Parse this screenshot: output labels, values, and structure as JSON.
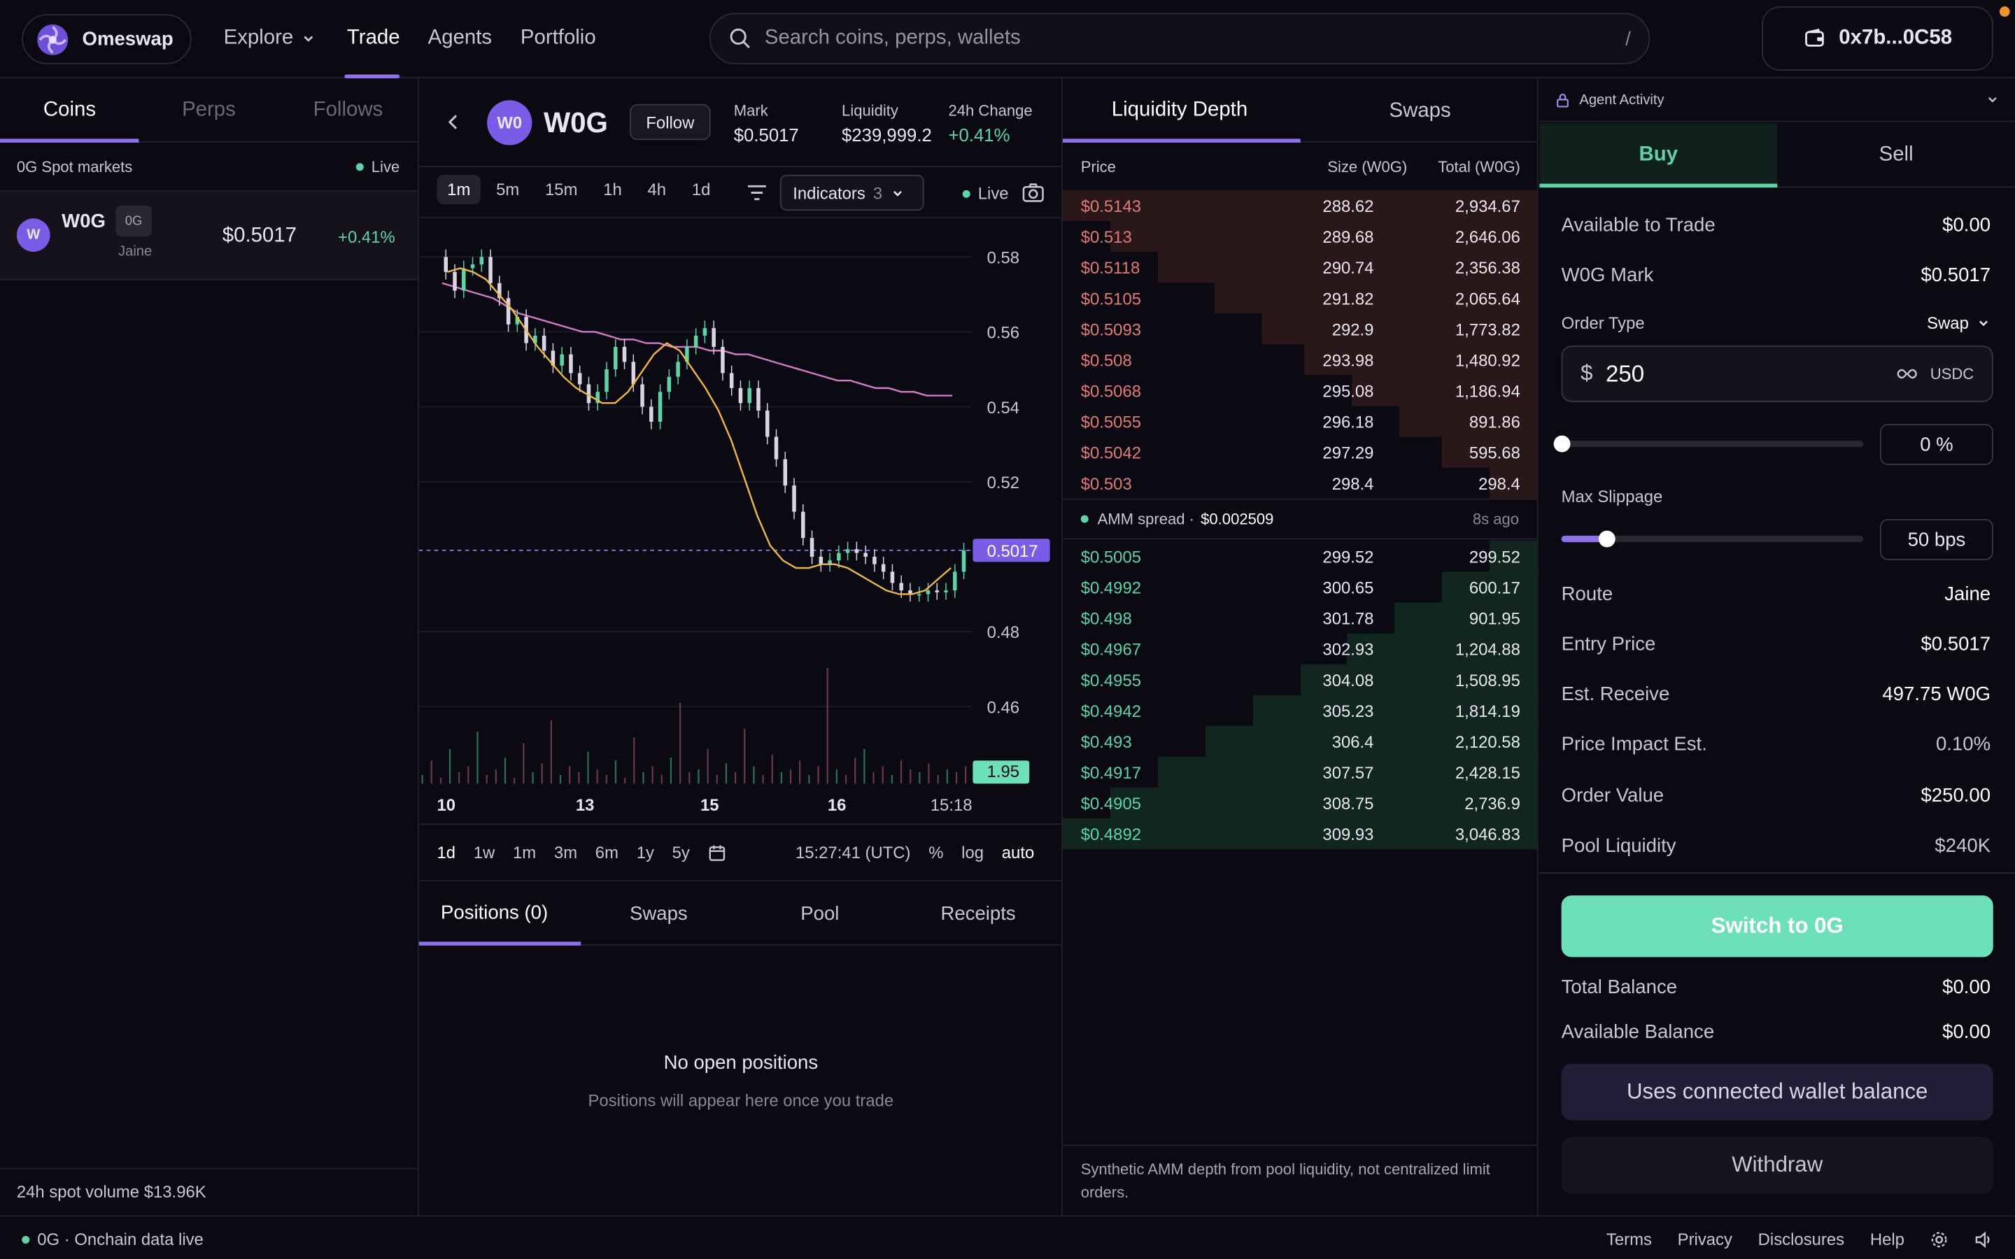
{
  "brand": {
    "name": "Omeswap"
  },
  "nav": {
    "explore": "Explore",
    "trade": "Trade",
    "agents": "Agents",
    "portfolio": "Portfolio"
  },
  "search": {
    "placeholder": "Search coins, perps, wallets",
    "shortcut": "/"
  },
  "wallet": {
    "address": "0x7b...0C58"
  },
  "left": {
    "tabs": [
      "Coins",
      "Perps",
      "Follows"
    ],
    "section_label": "0G Spot markets",
    "live": "Live",
    "coin": {
      "avatar": "W",
      "symbol": "W0G",
      "chain": "0G",
      "source": "Jaine",
      "price": "$0.5017",
      "change": "+0.41%"
    },
    "footer": "24h spot volume $13.96K"
  },
  "ticker": {
    "avatar": "W0",
    "symbol": "W0G",
    "follow": "Follow",
    "mark_label": "Mark",
    "mark": "$0.5017",
    "liq_label": "Liquidity",
    "liq": "$239,999.2",
    "chg_label": "24h Change",
    "chg": "+0.41%"
  },
  "chart_toolbar": {
    "timeframes": [
      "1m",
      "5m",
      "15m",
      "1h",
      "4h",
      "1d"
    ],
    "indicators_label": "Indicators",
    "indicators_count": "3",
    "live": "Live"
  },
  "chart_data": {
    "type": "line",
    "y_ticks": [
      "0.58",
      "0.56",
      "0.54",
      "0.52",
      "0.48",
      "0.46"
    ],
    "x_ticks": [
      "10",
      "13",
      "15",
      "16",
      "15:18"
    ],
    "ylim": [
      0.46,
      0.58
    ],
    "price_label": "0.5017",
    "volume_label": "1.95",
    "price": [
      0.58,
      0.576,
      0.571,
      0.577,
      0.578,
      0.58,
      0.573,
      0.569,
      0.562,
      0.564,
      0.557,
      0.559,
      0.555,
      0.551,
      0.554,
      0.549,
      0.546,
      0.541,
      0.544,
      0.55,
      0.556,
      0.552,
      0.546,
      0.54,
      0.536,
      0.544,
      0.548,
      0.552,
      0.556,
      0.559,
      0.561,
      0.556,
      0.549,
      0.545,
      0.541,
      0.545,
      0.539,
      0.532,
      0.526,
      0.519,
      0.512,
      0.505,
      0.5,
      0.498,
      0.499,
      0.501,
      0.502,
      0.501,
      0.5,
      0.498,
      0.496,
      0.493,
      0.491,
      0.49,
      0.49,
      0.491,
      0.4905,
      0.491,
      0.496,
      0.5017
    ],
    "ma_slow": [
      0.573,
      0.572,
      0.571,
      0.57,
      0.569,
      0.567,
      0.565,
      0.564,
      0.563,
      0.562,
      0.561,
      0.56,
      0.56,
      0.559,
      0.558,
      0.558,
      0.557,
      0.557,
      0.556,
      0.556,
      0.556,
      0.555,
      0.555,
      0.554,
      0.554,
      0.553,
      0.552,
      0.551,
      0.55,
      0.549,
      0.548,
      0.547,
      0.547,
      0.546,
      0.545,
      0.545,
      0.544,
      0.544,
      0.543,
      0.543,
      0.543
    ],
    "ma_fast": [
      0.576,
      0.577,
      0.576,
      0.574,
      0.57,
      0.566,
      0.561,
      0.556,
      0.552,
      0.548,
      0.545,
      0.543,
      0.541,
      0.541,
      0.544,
      0.549,
      0.554,
      0.557,
      0.555,
      0.55,
      0.545,
      0.539,
      0.531,
      0.521,
      0.511,
      0.503,
      0.499,
      0.497,
      0.497,
      0.498,
      0.498,
      0.497,
      0.495,
      0.493,
      0.491,
      0.49,
      0.49,
      0.491,
      0.494,
      0.497
    ],
    "volume": [
      3,
      8,
      2,
      12,
      4,
      6,
      18,
      3,
      5,
      9,
      2,
      14,
      4,
      7,
      22,
      3,
      6,
      4,
      11,
      5,
      3,
      8,
      2,
      16,
      4,
      6,
      3,
      9,
      28,
      4,
      5,
      12,
      3,
      7,
      4,
      19,
      6,
      3,
      10,
      4,
      5,
      8,
      3,
      6,
      40,
      5,
      3,
      9,
      12,
      4,
      6,
      3,
      8,
      5,
      4,
      7,
      3,
      5,
      4,
      6
    ]
  },
  "chart_bottom": {
    "ranges": [
      "1d",
      "1w",
      "1m",
      "3m",
      "6m",
      "1y",
      "5y"
    ],
    "time": "15:27:41 (UTC)",
    "percent": "%",
    "log": "log",
    "auto": "auto"
  },
  "positions": {
    "tabs": [
      "Positions (0)",
      "Swaps",
      "Pool",
      "Receipts"
    ],
    "empty_title": "No open positions",
    "empty_sub": "Positions will appear here once you trade"
  },
  "book": {
    "tabs": [
      "Liquidity Depth",
      "Swaps"
    ],
    "headers": [
      "Price",
      "Size (W0G)",
      "Total (W0G)"
    ],
    "asks": [
      {
        "price": "$0.5143",
        "size": "288.62",
        "total": "2,934.67",
        "depth": 1.0
      },
      {
        "price": "$0.513",
        "size": "289.68",
        "total": "2,646.06",
        "depth": 0.9
      },
      {
        "price": "$0.5118",
        "size": "290.74",
        "total": "2,356.38",
        "depth": 0.8
      },
      {
        "price": "$0.5105",
        "size": "291.82",
        "total": "2,065.64",
        "depth": 0.68
      },
      {
        "price": "$0.5093",
        "size": "292.9",
        "total": "1,773.82",
        "depth": 0.58
      },
      {
        "price": "$0.508",
        "size": "293.98",
        "total": "1,480.92",
        "depth": 0.49
      },
      {
        "price": "$0.5068",
        "size": "295.08",
        "total": "1,186.94",
        "depth": 0.39
      },
      {
        "price": "$0.5055",
        "size": "296.18",
        "total": "891.86",
        "depth": 0.29
      },
      {
        "price": "$0.5042",
        "size": "297.29",
        "total": "595.68",
        "depth": 0.2
      },
      {
        "price": "$0.503",
        "size": "298.4",
        "total": "298.4",
        "depth": 0.1
      }
    ],
    "spread_label": "AMM spread ·",
    "spread_value": "$0.002509",
    "spread_age": "8s ago",
    "bids": [
      {
        "price": "$0.5005",
        "size": "299.52",
        "total": "299.52",
        "depth": 0.1
      },
      {
        "price": "$0.4992",
        "size": "300.65",
        "total": "600.17",
        "depth": 0.2
      },
      {
        "price": "$0.498",
        "size": "301.78",
        "total": "901.95",
        "depth": 0.3
      },
      {
        "price": "$0.4967",
        "size": "302.93",
        "total": "1,204.88",
        "depth": 0.4
      },
      {
        "price": "$0.4955",
        "size": "304.08",
        "total": "1,508.95",
        "depth": 0.5
      },
      {
        "price": "$0.4942",
        "size": "305.23",
        "total": "1,814.19",
        "depth": 0.6
      },
      {
        "price": "$0.493",
        "size": "306.4",
        "total": "2,120.58",
        "depth": 0.7
      },
      {
        "price": "$0.4917",
        "size": "307.57",
        "total": "2,428.15",
        "depth": 0.8
      },
      {
        "price": "$0.4905",
        "size": "308.75",
        "total": "2,736.9",
        "depth": 0.9
      },
      {
        "price": "$0.4892",
        "size": "309.93",
        "total": "3,046.83",
        "depth": 1.0
      }
    ],
    "footnote": "Synthetic AMM depth from pool liquidity, not centralized limit orders."
  },
  "order": {
    "agent_activity": "Agent Activity",
    "buy": "Buy",
    "sell": "Sell",
    "available_label": "Available to Trade",
    "available": "$0.00",
    "mark_label": "W0G Mark",
    "mark": "$0.5017",
    "order_type_label": "Order Type",
    "order_type": "Swap",
    "currency_symbol": "$",
    "amount": "250",
    "amount_unit": "USDC",
    "size_pct": "0 %",
    "slippage_label": "Max Slippage",
    "slippage": "50 bps",
    "route_label": "Route",
    "route": "Jaine",
    "entry_label": "Entry Price",
    "entry": "$0.5017",
    "receive_label": "Est. Receive",
    "receive": "497.75 W0G",
    "impact_label": "Price Impact Est.",
    "impact": "0.10%",
    "value_label": "Order Value",
    "value": "$250.00",
    "pool_label": "Pool Liquidity",
    "pool": "$240K",
    "switch_btn": "Switch to 0G",
    "total_label": "Total Balance",
    "total": "$0.00",
    "avail_bal_label": "Available Balance",
    "avail_bal": "$0.00",
    "wallet_btn": "Uses connected wallet balance",
    "withdraw_btn": "Withdraw"
  },
  "status": {
    "left": "0G · Onchain data live",
    "links": [
      "Terms",
      "Privacy",
      "Disclosures",
      "Help"
    ]
  },
  "colors": {
    "accent": "#8f72ea",
    "green": "#5fd3a6",
    "red": "#e07a7a",
    "mint": "#6ee0b8"
  }
}
